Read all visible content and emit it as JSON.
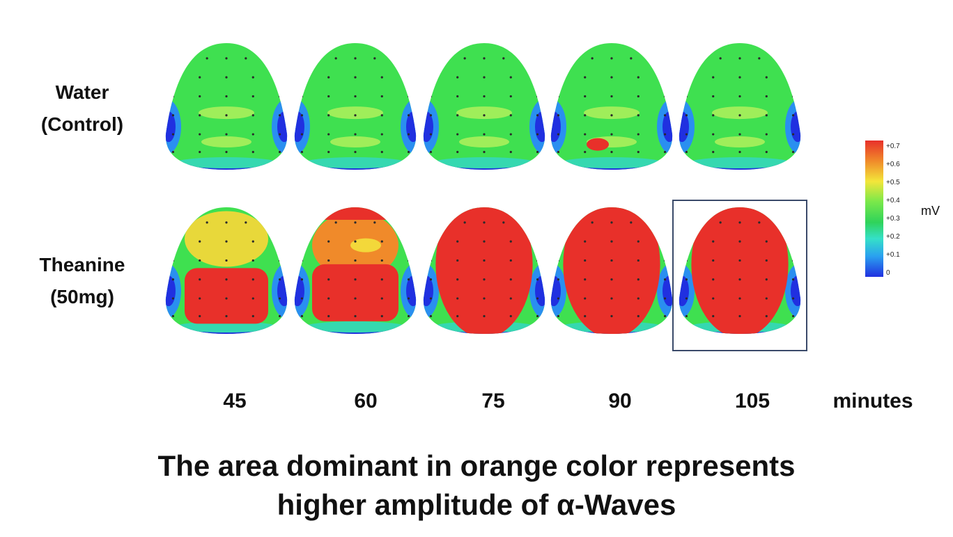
{
  "rows": [
    {
      "label_line1": "Water",
      "label_line2": "(Control)",
      "maps": [
        {
          "level": 0.32,
          "hot": 0.0
        },
        {
          "level": 0.35,
          "hot": 0.0
        },
        {
          "level": 0.33,
          "hot": 0.0
        },
        {
          "level": 0.34,
          "hot": 0.7
        },
        {
          "level": 0.33,
          "hot": 0.0
        }
      ]
    },
    {
      "label_line1": "Theanine",
      "label_line2": "(50mg)",
      "maps": [
        {
          "level": 0.55,
          "hot": 0.7
        },
        {
          "level": 0.6,
          "hot": 0.7
        },
        {
          "level": 0.7,
          "hot": 0.7
        },
        {
          "level": 0.7,
          "hot": 0.7
        },
        {
          "level": 0.7,
          "hot": 0.7
        }
      ]
    }
  ],
  "times": [
    "45",
    "60",
    "75",
    "90",
    "105"
  ],
  "time_unit": "minutes",
  "highlighted": {
    "row": 1,
    "col": 4
  },
  "colorbar": {
    "ticks": [
      "+0.7",
      "+0.6",
      "+0.5",
      "+0.4",
      "+0.3",
      "+0.2",
      "+0.1",
      "0"
    ],
    "unit": "mV",
    "colors": [
      "#e8302a",
      "#f08a2a",
      "#f3e63a",
      "#79e84a",
      "#2fd35a",
      "#35e0c8",
      "#2aa0f0",
      "#2030e0"
    ]
  },
  "caption_line1": "The area dominant in orange color represents",
  "caption_line2": "higher amplitude of α-Waves"
}
